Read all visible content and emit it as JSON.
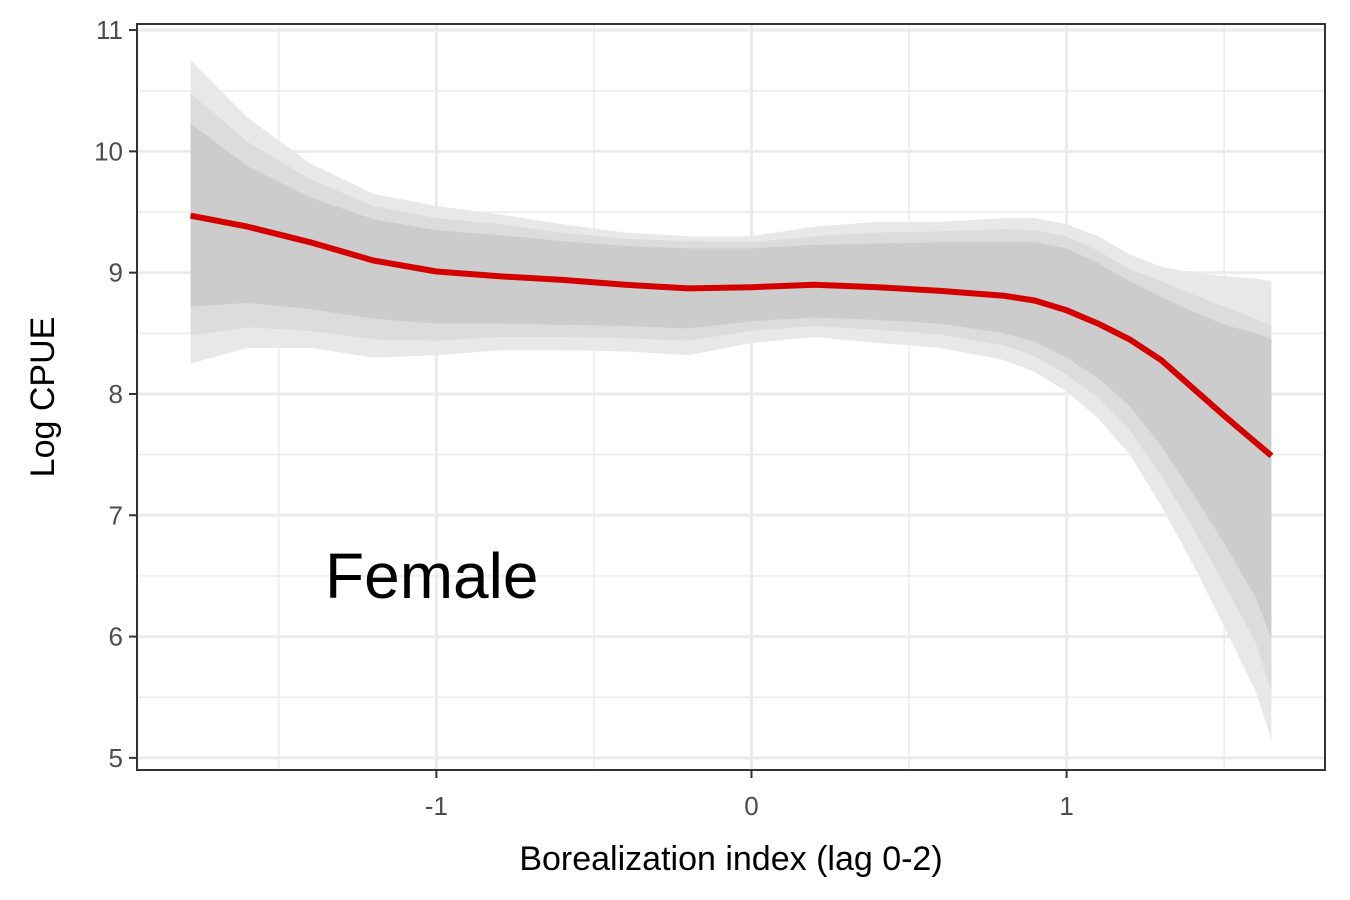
{
  "chart_data": {
    "type": "line",
    "xlabel": "Borealization index (lag 0-2)",
    "ylabel": "Log CPUE",
    "annotation": "Female",
    "xlim": [
      -1.95,
      1.82
    ],
    "ylim": [
      4.9,
      11.05
    ],
    "x_ticks": [
      -1,
      0,
      1
    ],
    "x_tick_labels": [
      "-1",
      "0",
      "1"
    ],
    "y_ticks": [
      5,
      6,
      7,
      8,
      9,
      10,
      11
    ],
    "y_tick_labels": [
      "5",
      "6",
      "7",
      "8",
      "9",
      "10",
      "11"
    ],
    "grid": true,
    "colors": {
      "line": "#d40000",
      "band_outer": "#e8e8e8",
      "band_middle": "#dcdcdc",
      "band_inner": "#cccccc",
      "grid": "#ebebeb",
      "panel_border": "#333333"
    },
    "x": [
      -1.78,
      -1.6,
      -1.4,
      -1.2,
      -1.0,
      -0.8,
      -0.6,
      -0.4,
      -0.2,
      0.0,
      0.2,
      0.4,
      0.6,
      0.8,
      0.9,
      1.0,
      1.1,
      1.2,
      1.3,
      1.4,
      1.5,
      1.6,
      1.65
    ],
    "series": [
      {
        "values": [
          9.47,
          9.38,
          9.25,
          9.1,
          9.01,
          8.97,
          8.94,
          8.9,
          8.87,
          8.88,
          8.9,
          8.88,
          8.85,
          8.81,
          8.77,
          8.69,
          8.58,
          8.45,
          8.28,
          8.05,
          7.82,
          7.6,
          7.49
        ]
      }
    ],
    "bands": [
      {
        "lower": [
          8.25,
          8.38,
          8.38,
          8.3,
          8.32,
          8.36,
          8.36,
          8.35,
          8.32,
          8.42,
          8.47,
          8.42,
          8.38,
          8.28,
          8.18,
          8.02,
          7.8,
          7.5,
          7.08,
          6.6,
          6.08,
          5.55,
          5.15
        ],
        "upper": [
          10.75,
          10.28,
          9.9,
          9.65,
          9.55,
          9.48,
          9.4,
          9.33,
          9.3,
          9.3,
          9.38,
          9.42,
          9.42,
          9.45,
          9.45,
          9.4,
          9.3,
          9.15,
          9.05,
          9.0,
          8.97,
          8.95,
          8.93
        ]
      },
      {
        "lower": [
          8.48,
          8.55,
          8.52,
          8.45,
          8.44,
          8.47,
          8.47,
          8.46,
          8.44,
          8.52,
          8.56,
          8.53,
          8.49,
          8.4,
          8.31,
          8.16,
          7.97,
          7.7,
          7.33,
          6.9,
          6.43,
          5.95,
          5.55
        ],
        "upper": [
          10.48,
          10.08,
          9.77,
          9.55,
          9.45,
          9.4,
          9.33,
          9.28,
          9.26,
          9.25,
          9.3,
          9.33,
          9.34,
          9.36,
          9.35,
          9.3,
          9.18,
          9.03,
          8.93,
          8.82,
          8.72,
          8.62,
          8.56
        ]
      },
      {
        "lower": [
          8.72,
          8.75,
          8.7,
          8.62,
          8.58,
          8.58,
          8.57,
          8.56,
          8.54,
          8.6,
          8.63,
          8.61,
          8.58,
          8.5,
          8.43,
          8.3,
          8.13,
          7.9,
          7.57,
          7.18,
          6.77,
          6.32,
          5.98
        ],
        "upper": [
          10.23,
          9.88,
          9.62,
          9.44,
          9.35,
          9.31,
          9.26,
          9.22,
          9.2,
          9.2,
          9.23,
          9.24,
          9.25,
          9.25,
          9.25,
          9.2,
          9.08,
          8.93,
          8.8,
          8.68,
          8.57,
          8.5,
          8.45
        ]
      }
    ]
  }
}
